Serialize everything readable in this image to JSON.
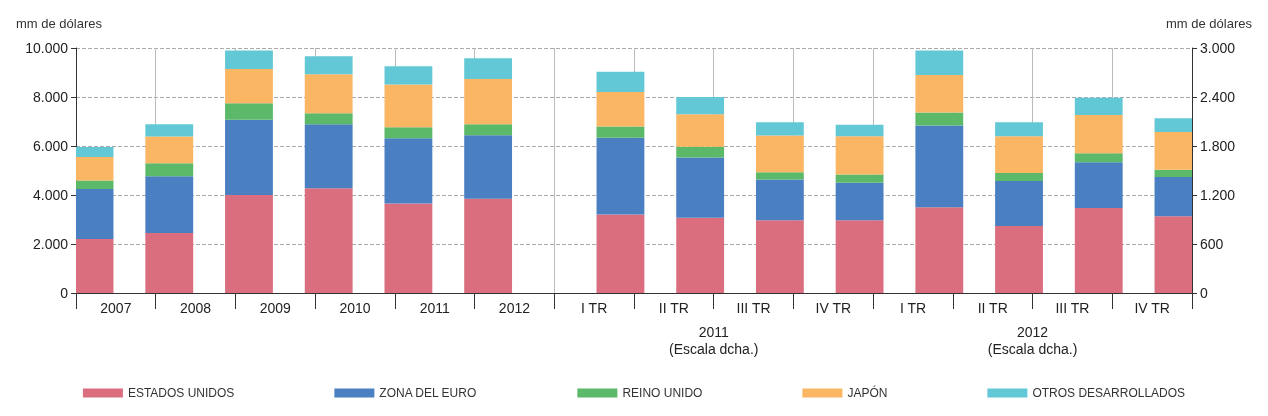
{
  "chart_data": {
    "type": "bar",
    "stacked": true,
    "ylabel": "mm de dólares",
    "y2label": "mm de dólares",
    "categories": [
      "2007",
      "2008",
      "2009",
      "2010",
      "2011",
      "2012",
      "I TR",
      "II TR",
      "III TR",
      "IV TR",
      "I TR",
      "II TR",
      "III TR",
      "IV TR"
    ],
    "series": [
      {
        "name": "ESTADOS UNIDOS",
        "color": "#db6e7e",
        "axis": "y",
        "values": [
          2200,
          2450,
          4000,
          4280,
          3650,
          3850,
          null,
          null,
          null,
          null,
          null,
          null,
          null,
          null
        ]
      },
      {
        "name": "ZONA DEL EURO",
        "color": "#4a7fc1",
        "axis": "y",
        "values": [
          2050,
          2320,
          3070,
          2610,
          2670,
          2590,
          null,
          null,
          null,
          null,
          null,
          null,
          null,
          null
        ]
      },
      {
        "name": "REINO UNIDO",
        "color": "#5cb96a",
        "axis": "y",
        "values": [
          340,
          530,
          680,
          450,
          450,
          450,
          null,
          null,
          null,
          null,
          null,
          null,
          null,
          null
        ]
      },
      {
        "name": "JAPÓN",
        "color": "#fbb664",
        "axis": "y",
        "values": [
          960,
          1090,
          1390,
          1590,
          1740,
          1840,
          null,
          null,
          null,
          null,
          null,
          null,
          null,
          null
        ]
      },
      {
        "name": "OTROS DESARROLLADOS",
        "color": "#63c8d5",
        "axis": "y",
        "values": [
          410,
          500,
          760,
          730,
          750,
          850,
          null,
          null,
          null,
          null,
          null,
          null,
          null,
          null
        ]
      },
      {
        "color": "#db6e7e",
        "axis": "y2",
        "values": [
          null,
          null,
          null,
          null,
          null,
          null,
          960,
          920,
          890,
          890,
          1050,
          820,
          1040,
          940
        ]
      },
      {
        "color": "#4a7fc1",
        "axis": "y2",
        "values": [
          null,
          null,
          null,
          null,
          null,
          null,
          940,
          740,
          500,
          460,
          1000,
          550,
          560,
          480
        ]
      },
      {
        "color": "#5cb96a",
        "axis": "y2",
        "values": [
          null,
          null,
          null,
          null,
          null,
          null,
          140,
          130,
          90,
          100,
          160,
          100,
          110,
          90
        ]
      },
      {
        "color": "#fbb664",
        "axis": "y2",
        "values": [
          null,
          null,
          null,
          null,
          null,
          null,
          420,
          400,
          450,
          470,
          460,
          450,
          470,
          460
        ]
      },
      {
        "color": "#63c8d5",
        "axis": "y2",
        "values": [
          null,
          null,
          null,
          null,
          null,
          null,
          250,
          210,
          160,
          140,
          300,
          170,
          210,
          170
        ]
      }
    ],
    "ylim": [
      0,
      10000
    ],
    "yticks": [
      0,
      {
        "value": 2000,
        "label": "2.000"
      },
      {
        "value": 4000,
        "label": "4.000"
      },
      {
        "value": 6000,
        "label": "6.000"
      },
      {
        "value": 8000,
        "label": "8.000"
      },
      {
        "value": 10000,
        "label": "10.000"
      }
    ],
    "y2lim": [
      0,
      3000
    ],
    "y2ticks": [
      0,
      600,
      {
        "value": 1200,
        "label": "1.200"
      },
      {
        "value": 1800,
        "label": "1.800"
      },
      {
        "value": 2400,
        "label": "2.400"
      },
      {
        "value": 3000,
        "label": "3.000"
      }
    ],
    "annotations": [
      "2011\n(Escala dcha.)",
      "2012\n(Escala dcha.)"
    ],
    "grid": true,
    "legend": "bottom"
  }
}
